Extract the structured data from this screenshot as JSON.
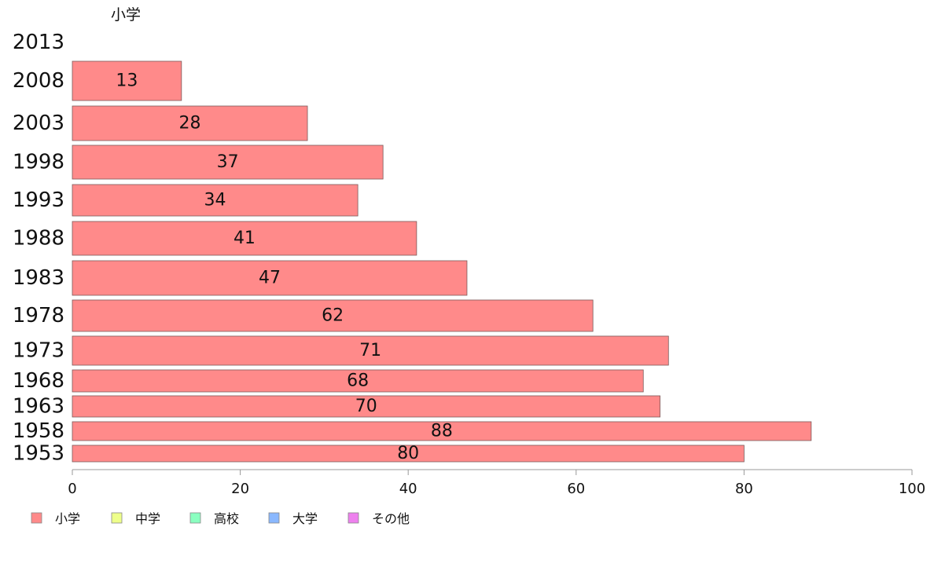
{
  "chart_data": {
    "type": "bar",
    "orientation": "horizontal",
    "header_label": "小学",
    "categories": [
      "2013",
      "2008",
      "2003",
      "1998",
      "1993",
      "1988",
      "1983",
      "1978",
      "1973",
      "1968",
      "1963",
      "1958",
      "1953"
    ],
    "series": [
      {
        "name": "小学",
        "color": "#ff8a8a",
        "values": [
          null,
          13,
          28,
          37,
          34,
          41,
          47,
          62,
          71,
          68,
          70,
          88,
          80
        ],
        "labels": [
          "",
          "13",
          "28",
          "37",
          "34",
          "41",
          "47",
          "62",
          "71",
          "68",
          "70",
          "88",
          "80"
        ]
      }
    ],
    "x_ticks": [
      "0",
      "20",
      "40",
      "60",
      "80",
      "100"
    ],
    "xlim": [
      0,
      100
    ],
    "grid": false,
    "legend": {
      "position": "bottom-left",
      "items": [
        {
          "label": "小学",
          "color": "#ff8a8a"
        },
        {
          "label": "中学",
          "color": "#eeff8a"
        },
        {
          "label": "高校",
          "color": "#8affc0"
        },
        {
          "label": "大学",
          "color": "#8ab8ff"
        },
        {
          "label": "その他",
          "color": "#ee80ee"
        }
      ]
    }
  }
}
